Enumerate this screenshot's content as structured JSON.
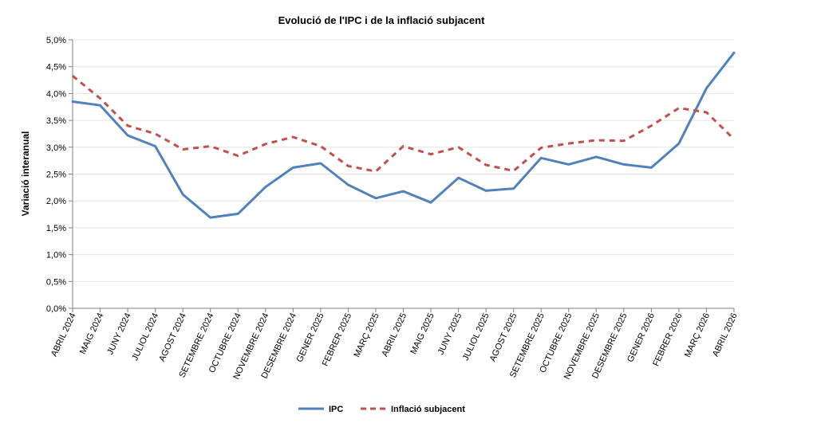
{
  "chart_data": {
    "type": "line",
    "title": "Evolució de l'IPC i de la inflació subjacent",
    "xlabel": "",
    "ylabel": "Variació interanual",
    "ylim": [
      0,
      5
    ],
    "y_tick_labels": [
      "0,0%",
      "0,5%",
      "1,0%",
      "1,5%",
      "2,0%",
      "2,5%",
      "3,0%",
      "3,5%",
      "4,0%",
      "4,5%",
      "5,0%"
    ],
    "y_ticks": [
      0,
      0.5,
      1,
      1.5,
      2,
      2.5,
      3,
      3.5,
      4,
      4.5,
      5
    ],
    "grid": true,
    "legend_position": "bottom",
    "categories": [
      "ABRIL 2024",
      "MAIG 2024",
      "JUNY 2024",
      "JULIOL 2024",
      "AGOST 2024",
      "SETEMBRE 2024",
      "OCTUBRE 2024",
      "NOVEMBRE 2024",
      "DESEMBRE 2024",
      "GENER 2025",
      "FEBRER 2025",
      "MARÇ 2025",
      "ABRIL 2025",
      "MAIG 2025",
      "JUNY 2025",
      "JULIOL 2025",
      "AGOST 2025",
      "SETEMBRE 2025",
      "OCTUBRE 2025",
      "NOVEMBRE 2025",
      "DESEMBRE 2025",
      "GENER 2026",
      "FEBRER 2026",
      "MARÇ 2026",
      "ABRIL 2026"
    ],
    "series": [
      {
        "name": "IPC",
        "color": "#4f81bd",
        "style": "solid",
        "values": [
          3.85,
          3.78,
          3.22,
          3.02,
          2.12,
          1.69,
          1.76,
          2.26,
          2.62,
          2.7,
          2.3,
          2.05,
          2.18,
          1.97,
          2.43,
          2.19,
          2.23,
          2.8,
          2.68,
          2.82,
          2.68,
          2.62,
          3.07,
          4.1,
          4.76
        ]
      },
      {
        "name": "Inflació subjacent",
        "color": "#c0504d",
        "style": "dashed",
        "values": [
          4.33,
          3.91,
          3.4,
          3.25,
          2.96,
          3.02,
          2.84,
          3.06,
          3.19,
          3.02,
          2.65,
          2.55,
          3.02,
          2.87,
          3.0,
          2.67,
          2.56,
          2.99,
          3.07,
          3.13,
          3.12,
          3.4,
          3.73,
          3.65,
          3.15
        ]
      }
    ]
  }
}
